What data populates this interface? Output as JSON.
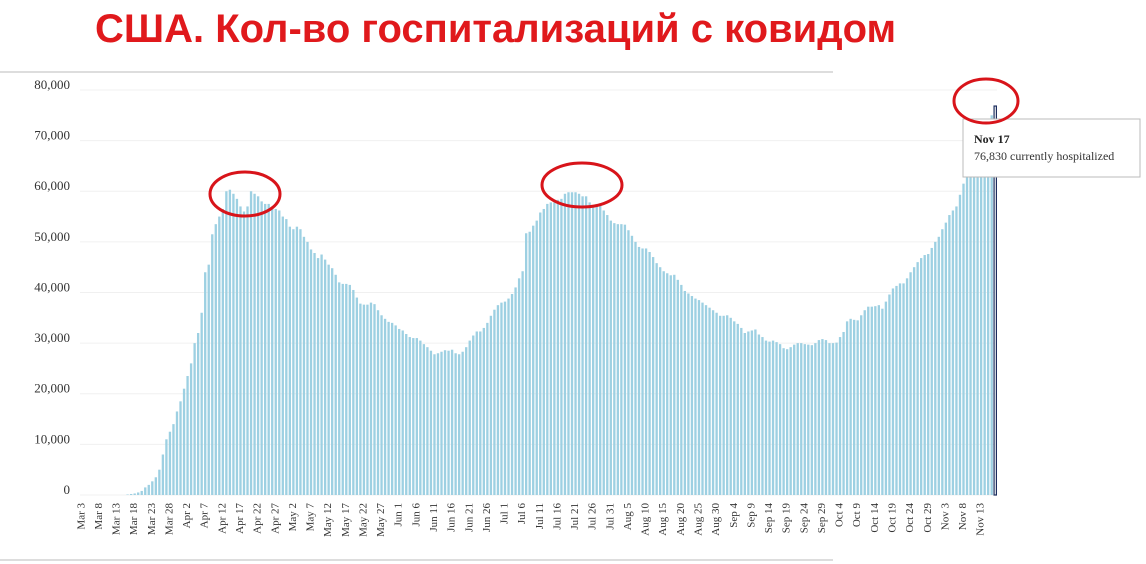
{
  "chart_data": {
    "type": "bar",
    "title": "США. Кол-во госпитализаций с ковидом",
    "categories": [
      "Mar 3",
      null,
      null,
      null,
      null,
      "Mar 8",
      null,
      null,
      null,
      null,
      "Mar 13",
      null,
      null,
      null,
      null,
      "Mar 18",
      null,
      null,
      null,
      null,
      "Mar 23",
      null,
      null,
      null,
      null,
      "Mar 28",
      null,
      null,
      null,
      null,
      "Apr 2",
      null,
      null,
      null,
      null,
      "Apr 7",
      null,
      null,
      null,
      null,
      "Apr 12",
      null,
      null,
      null,
      null,
      "Apr 17",
      null,
      null,
      null,
      null,
      "Apr 22",
      null,
      null,
      null,
      null,
      "Apr 27",
      null,
      null,
      null,
      null,
      "May 2",
      null,
      null,
      null,
      null,
      "May 7",
      null,
      null,
      null,
      null,
      "May 12",
      null,
      null,
      null,
      null,
      "May 17",
      null,
      null,
      null,
      null,
      "May 22",
      null,
      null,
      null,
      null,
      "May 27",
      null,
      null,
      null,
      null,
      "Jun 1",
      null,
      null,
      null,
      null,
      "Jun 6",
      null,
      null,
      null,
      null,
      "Jun 11",
      null,
      null,
      null,
      null,
      "Jun 16",
      null,
      null,
      null,
      null,
      "Jun 21",
      null,
      null,
      null,
      null,
      "Jun 26",
      null,
      null,
      null,
      null,
      "Jul 1",
      null,
      null,
      null,
      null,
      "Jul 6",
      null,
      null,
      null,
      null,
      "Jul 11",
      null,
      null,
      null,
      null,
      "Jul 16",
      null,
      null,
      null,
      null,
      "Jul 21",
      null,
      null,
      null,
      null,
      "Jul 26",
      null,
      null,
      null,
      null,
      "Jul 31",
      null,
      null,
      null,
      null,
      "Aug 5",
      null,
      null,
      null,
      null,
      "Aug 10",
      null,
      null,
      null,
      null,
      "Aug 15",
      null,
      null,
      null,
      null,
      "Aug 20",
      null,
      null,
      null,
      null,
      "Aug 25",
      null,
      null,
      null,
      null,
      "Aug 30",
      null,
      null,
      null,
      null,
      "Sep 4",
      null,
      null,
      null,
      null,
      "Sep 9",
      null,
      null,
      null,
      null,
      "Sep 14",
      null,
      null,
      null,
      null,
      "Sep 19",
      null,
      null,
      null,
      null,
      "Sep 24",
      null,
      null,
      null,
      null,
      "Sep 29",
      null,
      null,
      null,
      null,
      "Oct 4",
      null,
      null,
      null,
      null,
      "Oct 9",
      null,
      null,
      null,
      null,
      "Oct 14",
      null,
      null,
      null,
      null,
      "Oct 19",
      null,
      null,
      null,
      null,
      "Oct 24",
      null,
      null,
      null,
      null,
      "Oct 29",
      null,
      null,
      null,
      null,
      "Nov 3",
      null,
      null,
      null,
      null,
      "Nov 8",
      null,
      null,
      null,
      null,
      "Nov 13",
      null,
      null,
      null,
      null
    ],
    "values": [
      0,
      0,
      0,
      0,
      0,
      0,
      0,
      0,
      0,
      0,
      0,
      0,
      0,
      100,
      200,
      300,
      500,
      800,
      1500,
      2000,
      2700,
      3500,
      5000,
      8000,
      11000,
      12500,
      14000,
      16500,
      18500,
      21000,
      23500,
      26000,
      30000,
      32000,
      36000,
      44000,
      45500,
      51500,
      53500,
      55000,
      56500,
      60000,
      60300,
      59500,
      58500,
      57000,
      56000,
      57000,
      60000,
      59500,
      59000,
      58000,
      57500,
      57500,
      57000,
      56500,
      56200,
      55000,
      54500,
      53000,
      52500,
      53000,
      52500,
      51000,
      50000,
      48500,
      47800,
      46800,
      47500,
      46500,
      45500,
      44800,
      43500,
      42000,
      41700,
      41700,
      41500,
      40500,
      39000,
      37800,
      37600,
      37600,
      38000,
      37700,
      36500,
      35500,
      34800,
      34200,
      34000,
      33500,
      32800,
      32500,
      31800,
      31200,
      31000,
      31000,
      30500,
      29800,
      29200,
      28500,
      27800,
      28000,
      28300,
      28600,
      28500,
      28700,
      28000,
      27800,
      28300,
      29200,
      30500,
      31500,
      32300,
      32300,
      33000,
      34000,
      35400,
      36600,
      37500,
      38000,
      38200,
      38800,
      39700,
      41000,
      42800,
      44200,
      51700,
      52000,
      53200,
      54200,
      55800,
      56500,
      57500,
      57800,
      57800,
      58300,
      58500,
      59500,
      59800,
      59800,
      59800,
      59500,
      59000,
      59000,
      57800,
      56800,
      57500,
      57300,
      56200,
      55300,
      54200,
      53700,
      53500,
      53500,
      53400,
      52300,
      51200,
      50000,
      49000,
      48700,
      48700,
      48000,
      47000,
      45800,
      45000,
      44200,
      43800,
      43400,
      43500,
      42500,
      41500,
      40300,
      39800,
      39300,
      38800,
      38500,
      38000,
      37500,
      37000,
      36500,
      36000,
      35400,
      35400,
      35500,
      35000,
      34300,
      33800,
      33000,
      32000,
      32300,
      32500,
      32700,
      31700,
      31200,
      30500,
      30300,
      30500,
      30200,
      29800,
      29000,
      28800,
      29200,
      29700,
      30000,
      30000,
      29800,
      29700,
      29600,
      30000,
      30600,
      30800,
      30600,
      30000,
      30000,
      30100,
      31200,
      32200,
      34300,
      34800,
      34600,
      34500,
      35500,
      36500,
      37200,
      37200,
      37300,
      37500,
      36800,
      38200,
      39600,
      40800,
      41300,
      41800,
      41800,
      42800,
      44000,
      45000,
      46000,
      46800,
      47400,
      47600,
      48800,
      50000,
      51000,
      52500,
      53800,
      55300,
      56200,
      57000,
      59300,
      61500,
      62800,
      64500,
      65400,
      67100,
      69000,
      69700,
      73000,
      75000,
      76830
    ],
    "color": "#9dd0e2",
    "ylim": [
      0,
      80000
    ],
    "yticks": [
      0,
      {
        "value": 10000,
        "label": "10,000"
      },
      {
        "value": 20000,
        "label": "20,000"
      },
      {
        "value": 30000,
        "label": "30,000"
      },
      {
        "value": 40000,
        "label": "40,000"
      },
      {
        "value": 50000,
        "label": "50,000"
      },
      {
        "value": 60000,
        "label": "60,000"
      },
      {
        "value": 70000,
        "label": "70,000"
      },
      {
        "value": 80000,
        "label": "80,000"
      }
    ],
    "grid": true,
    "tooltip": {
      "title": "Nov 17",
      "text": "76,830 currently hospitalized"
    }
  }
}
